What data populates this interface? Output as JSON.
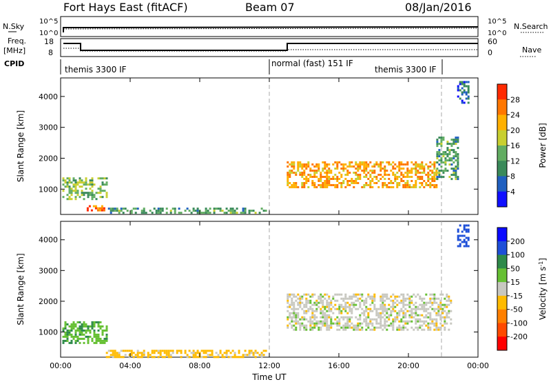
{
  "header": {
    "station": "Fort Hays East (fitACF)",
    "beam": "Beam 07",
    "date": "08/Jan/2016"
  },
  "top_panels": {
    "nsky_label": "N.Sky",
    "nsky_ticks": [
      "10^5",
      "10^0"
    ],
    "nsearch_label": "N.Search",
    "nsearch_ticks": [
      "10^5",
      "10^0"
    ],
    "freq_label": "Freq.",
    "freq_unit": "[MHz]",
    "freq_ticks": [
      "18",
      "8"
    ],
    "nave_label": "Nave",
    "nave_ticks": [
      "60",
      "0"
    ],
    "cpid_label": "CPID",
    "cpid_segments": [
      "themis 3300 IF",
      "normal (fast) 151 IF",
      "themis 3300 IF"
    ]
  },
  "colors": {
    "power": [
      "#1010ff",
      "#2060c0",
      "#3a8a5a",
      "#62ad62",
      "#c8cf30",
      "#ffb000",
      "#ff7700",
      "#ff2a00"
    ],
    "velocity": [
      "#0a0aff",
      "#1e4fd8",
      "#2e8a4a",
      "#66c033",
      "#c8c8c0",
      "#ffbb00",
      "#ff8000",
      "#ff4a00",
      "#ff0000"
    ]
  },
  "chart_data": [
    {
      "type": "heatmap",
      "name": "power",
      "ylabel": "Slant Range [km]",
      "xlabel": "Time UT",
      "colorbar_label": "Power [dB]",
      "colorbar_ticks": [
        "28",
        "24",
        "20",
        "16",
        "12",
        "8",
        "4"
      ],
      "x_ticks": [
        "00:00",
        "04:00",
        "08:00",
        "12:00",
        "16:00",
        "20:00",
        "00:00"
      ],
      "y_ticks": [
        "4000",
        "3000",
        "2000",
        "1000"
      ],
      "xlim_hours": [
        0,
        24
      ],
      "ylim_km": [
        180,
        4600
      ],
      "regions": [
        {
          "t": [
            0.1,
            2.7
          ],
          "r": [
            700,
            1380
          ],
          "power": 15
        },
        {
          "t": [
            1.5,
            2.6
          ],
          "r": [
            330,
            480
          ],
          "power": 26
        },
        {
          "t": [
            2.6,
            11.8
          ],
          "r": [
            200,
            400
          ],
          "power": 12
        },
        {
          "t": [
            13.0,
            21.6
          ],
          "r": [
            1050,
            1900
          ],
          "power": 23
        },
        {
          "t": [
            21.6,
            22.9
          ],
          "r": [
            1300,
            2700
          ],
          "power": 12
        },
        {
          "t": [
            22.8,
            23.5
          ],
          "r": [
            3800,
            4500
          ],
          "power": 7
        }
      ]
    },
    {
      "type": "heatmap",
      "name": "velocity",
      "ylabel": "Slant Range [km]",
      "xlabel": "Time UT",
      "colorbar_label": "Velocity [m s",
      "colorbar_sup": "-1",
      "colorbar_ticks": [
        "200",
        "100",
        "50",
        "15",
        "-15",
        "-50",
        "-100",
        "-200"
      ],
      "x_ticks": [
        "00:00",
        "04:00",
        "08:00",
        "12:00",
        "16:00",
        "20:00",
        "00:00"
      ],
      "y_ticks": [
        "4000",
        "3000",
        "2000",
        "1000"
      ],
      "xlim_hours": [
        0,
        24
      ],
      "ylim_km": [
        180,
        4600
      ],
      "regions": [
        {
          "t": [
            0.1,
            2.7
          ],
          "r": [
            620,
            1350
          ],
          "velocity": 40
        },
        {
          "t": [
            2.6,
            11.8
          ],
          "r": [
            200,
            420
          ],
          "velocity": -30
        },
        {
          "t": [
            13.0,
            22.5
          ],
          "r": [
            1050,
            2250
          ],
          "velocity": 0
        },
        {
          "t": [
            22.8,
            23.5
          ],
          "r": [
            3800,
            4500
          ],
          "velocity": 150
        }
      ]
    }
  ],
  "time_axis_label": "Time UT"
}
